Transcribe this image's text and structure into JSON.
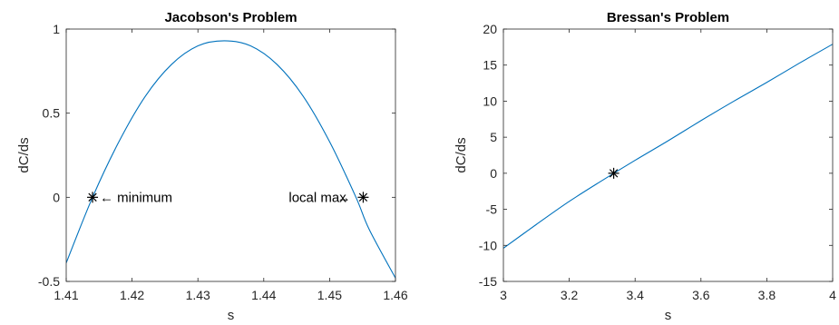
{
  "chart_data": [
    {
      "type": "line",
      "title": "Jacobson's Problem",
      "xlabel": "s",
      "ylabel": "dC/ds",
      "xlim": [
        1.41,
        1.46
      ],
      "ylim": [
        -0.5,
        1
      ],
      "xticks": [
        1.41,
        1.42,
        1.43,
        1.44,
        1.45,
        1.46
      ],
      "xtick_labels": [
        "1.41",
        "1.42",
        "1.43",
        "1.44",
        "1.45",
        "1.46"
      ],
      "yticks": [
        -0.5,
        0,
        0.5,
        1
      ],
      "ytick_labels": [
        "-0.5",
        "0",
        "0.5",
        "1"
      ],
      "grid": false,
      "series": [
        {
          "x": [
            1.41,
            1.414,
            1.418,
            1.422,
            1.426,
            1.43,
            1.434,
            1.438,
            1.442,
            1.446,
            1.45,
            1.454,
            1.456,
            1.46
          ],
          "y": [
            -0.39,
            0.0,
            0.33,
            0.6,
            0.79,
            0.9,
            0.93,
            0.9,
            0.79,
            0.6,
            0.33,
            0.0,
            -0.19,
            -0.48
          ],
          "color": "#0072bd"
        }
      ],
      "markers": [
        {
          "x": 1.414,
          "y": 0
        },
        {
          "x": 1.4551,
          "y": 0
        }
      ],
      "annotations": [
        {
          "text": "← minimum",
          "x": 1.4151,
          "y": 0,
          "anchor": "start"
        },
        {
          "text": "local max",
          "x": 1.4438,
          "y": 0,
          "anchor": "start"
        },
        {
          "text": "→",
          "x": 1.4532,
          "y": 0,
          "anchor": "end"
        }
      ]
    },
    {
      "type": "line",
      "title": "Bressan's Problem",
      "xlabel": "s",
      "ylabel": "dC/ds",
      "xlim": [
        3,
        4
      ],
      "ylim": [
        -15,
        20
      ],
      "xticks": [
        3,
        3.2,
        3.4,
        3.6,
        3.8,
        4
      ],
      "xtick_labels": [
        "3",
        "3.2",
        "3.4",
        "3.6",
        "3.8",
        "4"
      ],
      "yticks": [
        -15,
        -10,
        -5,
        0,
        5,
        10,
        15,
        20
      ],
      "ytick_labels": [
        "-15",
        "-10",
        "-5",
        "0",
        "5",
        "10",
        "15",
        "20"
      ],
      "grid": false,
      "series": [
        {
          "x": [
            3.0,
            3.1,
            3.2,
            3.3,
            3.4,
            3.5,
            3.6,
            3.7,
            3.8,
            3.9,
            4.0
          ],
          "y": [
            -10.4,
            -7.1,
            -3.9,
            -1.0,
            1.8,
            4.5,
            7.3,
            10.0,
            12.6,
            15.3,
            17.9
          ],
          "color": "#0072bd"
        }
      ],
      "markers": [
        {
          "x": 3.335,
          "y": 0
        }
      ],
      "annotations": []
    }
  ]
}
